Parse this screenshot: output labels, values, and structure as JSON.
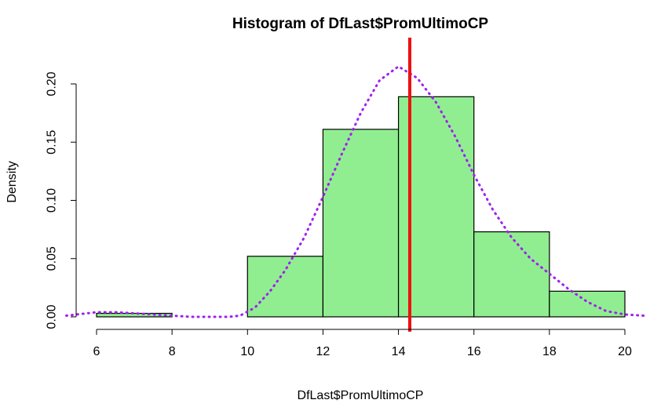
{
  "chart_data": {
    "type": "bar",
    "title": "Histogram of DfLast$PromUltimoCP",
    "xlabel": "DfLast$PromUltimoCP",
    "ylabel": "Density",
    "xlim": [
      6,
      20
    ],
    "ylim": [
      0,
      0.2
    ],
    "xticks": [
      "6",
      "8",
      "10",
      "12",
      "14",
      "16",
      "18",
      "20"
    ],
    "yticks": [
      "0.00",
      "0.05",
      "0.10",
      "0.15",
      "0.20"
    ],
    "bins": [
      {
        "x0": 6,
        "x1": 8,
        "density": 0.003
      },
      {
        "x0": 8,
        "x1": 10,
        "density": 0.0
      },
      {
        "x0": 10,
        "x1": 12,
        "density": 0.052
      },
      {
        "x0": 12,
        "x1": 14,
        "density": 0.161
      },
      {
        "x0": 14,
        "x1": 16,
        "density": 0.189
      },
      {
        "x0": 16,
        "x1": 18,
        "density": 0.073
      },
      {
        "x0": 18,
        "x1": 20,
        "density": 0.022
      }
    ],
    "bar_color": "#90ee90",
    "bar_border": "#000000",
    "vline": {
      "x": 14.3,
      "color": "#ee1111"
    },
    "density_curve": {
      "color": "#a020f0",
      "style": "dotted",
      "points": [
        [
          5.2,
          0.001
        ],
        [
          6.0,
          0.004
        ],
        [
          6.5,
          0.004
        ],
        [
          7.0,
          0.003
        ],
        [
          7.5,
          0.002
        ],
        [
          8.0,
          0.001
        ],
        [
          8.5,
          0.0
        ],
        [
          9.0,
          0.0
        ],
        [
          9.5,
          0.0
        ],
        [
          9.8,
          0.001
        ],
        [
          10.2,
          0.008
        ],
        [
          10.6,
          0.022
        ],
        [
          11.0,
          0.04
        ],
        [
          11.5,
          0.068
        ],
        [
          12.0,
          0.103
        ],
        [
          12.5,
          0.14
        ],
        [
          13.0,
          0.175
        ],
        [
          13.5,
          0.203
        ],
        [
          14.0,
          0.215
        ],
        [
          14.5,
          0.205
        ],
        [
          15.0,
          0.184
        ],
        [
          15.5,
          0.155
        ],
        [
          16.0,
          0.122
        ],
        [
          16.5,
          0.092
        ],
        [
          17.0,
          0.068
        ],
        [
          17.5,
          0.05
        ],
        [
          18.0,
          0.037
        ],
        [
          18.5,
          0.024
        ],
        [
          19.0,
          0.013
        ],
        [
          19.5,
          0.005
        ],
        [
          20.0,
          0.002
        ],
        [
          20.5,
          0.001
        ]
      ]
    }
  }
}
